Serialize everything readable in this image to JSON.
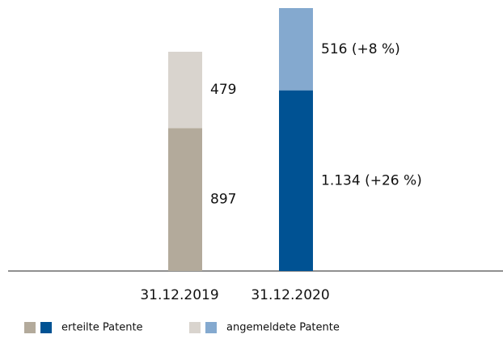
{
  "chart_data": {
    "type": "stacked-bar",
    "categories": [
      "31.12.2019",
      "31.12.2020"
    ],
    "series": [
      {
        "name": "erteilte Patente",
        "colors": [
          "#b3aa9b",
          "#005293"
        ],
        "values": [
          897,
          1134
        ],
        "value_labels": [
          "897",
          "1.134 (+26 %)"
        ]
      },
      {
        "name": "angemeldete Patente",
        "colors": [
          "#d9d4ce",
          "#84a9cf"
        ],
        "values": [
          479,
          516
        ],
        "value_labels": [
          "479",
          "516 (+8 %)"
        ]
      }
    ],
    "ylim": [
      0,
      1650
    ]
  }
}
